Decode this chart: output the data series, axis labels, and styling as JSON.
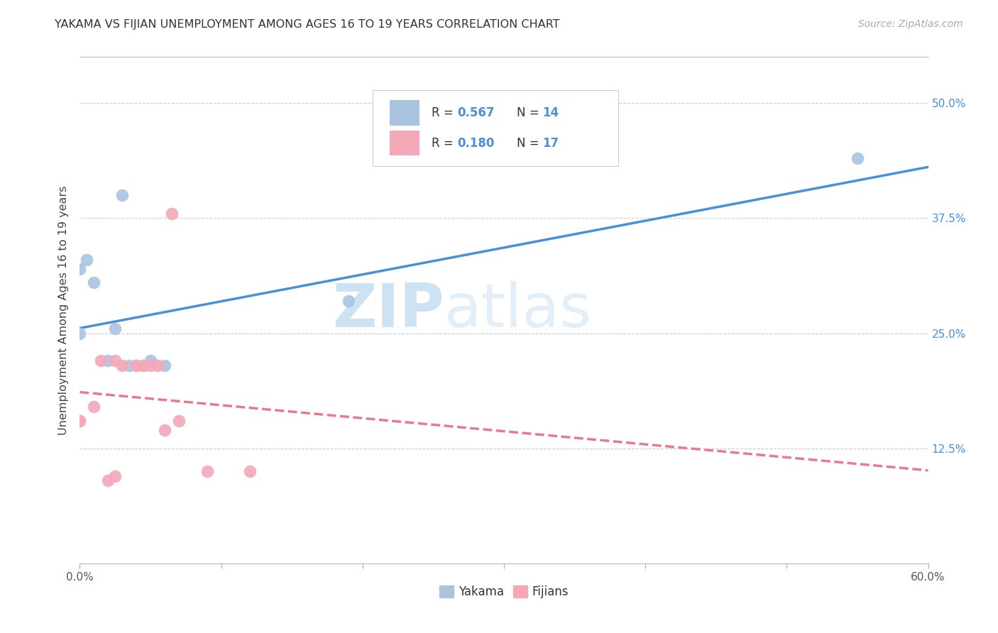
{
  "title": "YAKAMA VS FIJIAN UNEMPLOYMENT AMONG AGES 16 TO 19 YEARS CORRELATION CHART",
  "source": "Source: ZipAtlas.com",
  "ylabel": "Unemployment Among Ages 16 to 19 years",
  "xlim": [
    0.0,
    0.6
  ],
  "ylim": [
    0.0,
    0.55
  ],
  "R_yakama": 0.567,
  "N_yakama": 14,
  "R_fijian": 0.18,
  "N_fijian": 17,
  "yakama_color": "#aac4e0",
  "fijian_color": "#f4a8b8",
  "trendline_yakama_color": "#4a90d9",
  "trendline_fijian_color": "#e87a8a",
  "background_color": "#ffffff",
  "watermark_color": "#cde4f5",
  "yakama_x": [
    0.0,
    0.0,
    0.005,
    0.01,
    0.02,
    0.025,
    0.03,
    0.04,
    0.045,
    0.05,
    0.19,
    0.55,
    0.06,
    0.035
  ],
  "yakama_y": [
    0.25,
    0.32,
    0.33,
    0.305,
    0.22,
    0.255,
    0.4,
    0.215,
    0.215,
    0.22,
    0.285,
    0.44,
    0.215,
    0.215
  ],
  "fijian_x": [
    0.0,
    0.0,
    0.01,
    0.015,
    0.02,
    0.025,
    0.025,
    0.03,
    0.04,
    0.045,
    0.05,
    0.055,
    0.06,
    0.065,
    0.07,
    0.09,
    0.12
  ],
  "fijian_y": [
    0.155,
    0.155,
    0.17,
    0.22,
    0.09,
    0.095,
    0.22,
    0.215,
    0.215,
    0.215,
    0.215,
    0.215,
    0.145,
    0.38,
    0.155,
    0.1,
    0.1
  ]
}
